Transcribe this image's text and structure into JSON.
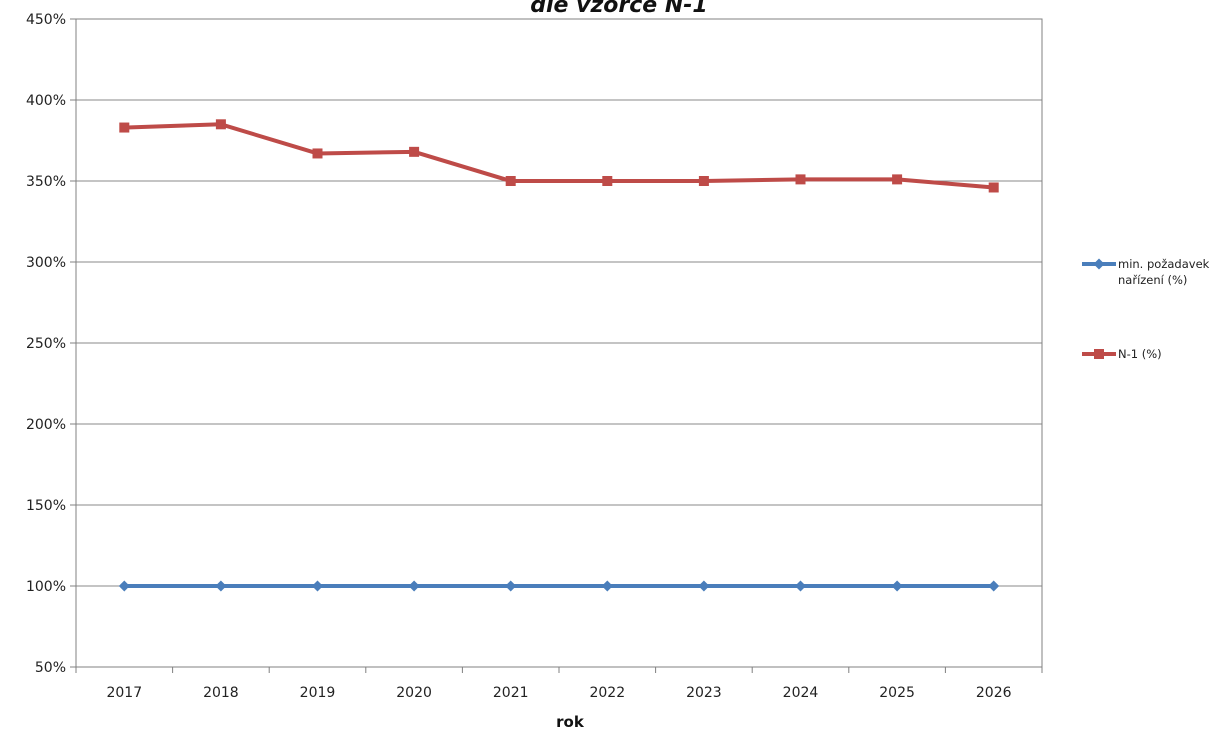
{
  "chart_data": {
    "type": "line",
    "title": "dle vzorce N-1",
    "xlabel": "rok",
    "ylabel": "",
    "categories": [
      "2017",
      "2018",
      "2019",
      "2020",
      "2021",
      "2022",
      "2023",
      "2024",
      "2025",
      "2026"
    ],
    "ylim": [
      50,
      450
    ],
    "yticks": [
      "50%",
      "100%",
      "150%",
      "200%",
      "250%",
      "300%",
      "350%",
      "400%",
      "450%"
    ],
    "grid": true,
    "legend": "right",
    "series": [
      {
        "name_lines": [
          "min. požadavek",
          "nařízení (%)"
        ],
        "color": "#4a7ebb",
        "marker": "diamond",
        "values": [
          100,
          100,
          100,
          100,
          100,
          100,
          100,
          100,
          100,
          100
        ]
      },
      {
        "name_lines": [
          "N-1 (%)"
        ],
        "color": "#be4b48",
        "marker": "square",
        "values": [
          383,
          385,
          367,
          368,
          350,
          350,
          350,
          351,
          351,
          346
        ]
      }
    ]
  }
}
